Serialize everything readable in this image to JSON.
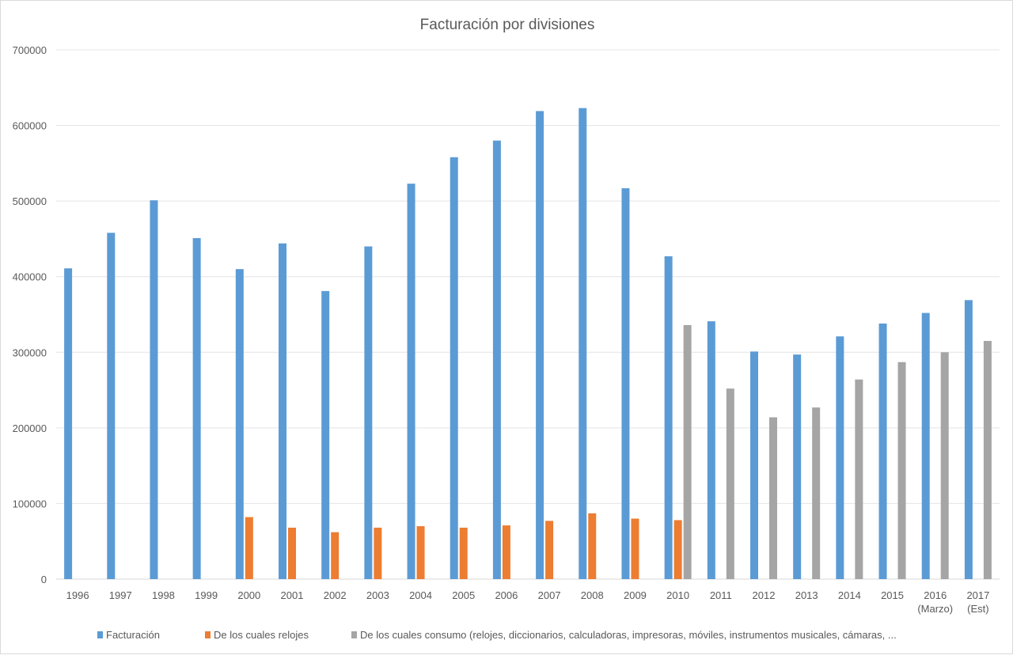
{
  "chart_data": {
    "type": "bar",
    "title": "Facturación por divisiones",
    "xlabel": "",
    "ylabel": "",
    "ylim": [
      0,
      700000
    ],
    "yticks": [
      0,
      100000,
      200000,
      300000,
      400000,
      500000,
      600000,
      700000
    ],
    "grid": true,
    "legend_position": "bottom",
    "categories": [
      "1996",
      "1997",
      "1998",
      "1999",
      "2000",
      "2001",
      "2002",
      "2003",
      "2004",
      "2005",
      "2006",
      "2007",
      "2008",
      "2009",
      "2010",
      "2011",
      "2012",
      "2013",
      "2014",
      "2015",
      "2016\n(Marzo)",
      "2017\n(Est)"
    ],
    "series": [
      {
        "name": "Facturación",
        "color": "#5b9bd5",
        "values": [
          411000,
          458000,
          501000,
          451000,
          410000,
          444000,
          381000,
          440000,
          523000,
          558000,
          580000,
          619000,
          623000,
          517000,
          427000,
          341000,
          301000,
          297000,
          321000,
          338000,
          352000,
          369000
        ]
      },
      {
        "name": "De los cuales relojes",
        "color": "#ed7d31",
        "values": [
          null,
          null,
          null,
          null,
          82000,
          68000,
          62000,
          68000,
          70000,
          68000,
          71000,
          77000,
          87000,
          80000,
          78000,
          null,
          null,
          null,
          null,
          null,
          null,
          null
        ]
      },
      {
        "name": "De los cuales consumo (relojes, diccionarios, calculadoras, impresoras, móviles, instrumentos musicales, cámaras, ...",
        "color": "#a5a5a5",
        "values": [
          null,
          null,
          null,
          null,
          null,
          null,
          null,
          null,
          null,
          null,
          null,
          null,
          null,
          null,
          336000,
          252000,
          214000,
          227000,
          264000,
          287000,
          300000,
          315000
        ]
      }
    ]
  }
}
